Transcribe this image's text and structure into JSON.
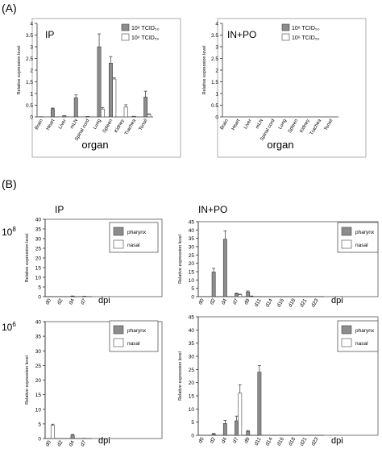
{
  "panel_labels": [
    "(A)",
    "(B)"
  ],
  "row_labels": [
    {
      "base": "10",
      "sup": "8"
    },
    {
      "base": "10",
      "sup": "6"
    }
  ],
  "charts": {
    "a_ip": {
      "title": "IP"
    },
    "a_inpo": {
      "title": "IN+PO"
    },
    "b_ip_108": {
      "title": "IP"
    },
    "b_inpo_108": {
      "title": "IN+PO"
    }
  },
  "colors": {
    "gray": "#8c8c8c",
    "white": "#ffffff",
    "stroke": "#444444"
  },
  "chart_data": [
    {
      "id": "a_ip",
      "type": "bar",
      "title": "IP",
      "xlabel": "organ",
      "ylabel": "Relative expression level",
      "ylim": [
        0,
        4
      ],
      "yticks": [
        0,
        0.5,
        1,
        1.5,
        2,
        2.5,
        3,
        3.5,
        4
      ],
      "categories": [
        "Brain",
        "Heart",
        "Liver",
        "mLN",
        "Spinal cord",
        "Lung",
        "Spleen",
        "Kidney",
        "Trachea",
        "Tonsil"
      ],
      "legend": {
        "position": "top-right"
      },
      "series": [
        {
          "name": "10⁸ TCID₅₀",
          "color": "gray",
          "values": [
            0.01,
            0.35,
            0.06,
            0.82,
            0.02,
            3.0,
            2.3,
            0.0,
            0.03,
            0.85
          ],
          "errors": [
            0,
            0.03,
            0,
            0.12,
            0,
            0.55,
            0.28,
            0,
            0,
            0.25
          ]
        },
        {
          "name": "10⁶ TCID₅₀",
          "color": "white",
          "values": [
            0.0,
            0.0,
            0.0,
            0.0,
            0.0,
            0.33,
            1.62,
            0.42,
            0.0,
            0.1
          ],
          "errors": [
            0,
            0,
            0,
            0,
            0,
            0.06,
            0.05,
            0.1,
            0,
            0.03
          ]
        }
      ]
    },
    {
      "id": "a_inpo",
      "type": "bar",
      "title": "IN+PO",
      "xlabel": "organ",
      "ylabel": "Relative expression level",
      "ylim": [
        0,
        4
      ],
      "yticks": [
        0,
        0.5,
        1,
        1.5,
        2,
        2.5,
        3,
        3.5,
        4
      ],
      "categories": [
        "Brain",
        "Heart",
        "Liver",
        "mLN",
        "Spinal cord",
        "Lung",
        "Spleen",
        "Kidney",
        "Trachea",
        "Tonsil"
      ],
      "legend": {
        "position": "top-right"
      },
      "series": [
        {
          "name": "10⁸ TCID₅₀",
          "color": "gray",
          "values": [
            0,
            0,
            0,
            0,
            0,
            0,
            0,
            0,
            0,
            0
          ],
          "errors": [
            0,
            0,
            0,
            0,
            0,
            0,
            0,
            0,
            0,
            0
          ]
        },
        {
          "name": "10⁶ TCID₅₀",
          "color": "white",
          "values": [
            0,
            0,
            0,
            0,
            0,
            0,
            0,
            0,
            0,
            0
          ],
          "errors": [
            0,
            0,
            0,
            0,
            0,
            0,
            0,
            0,
            0,
            0
          ]
        }
      ]
    },
    {
      "id": "b_ip_108",
      "type": "bar",
      "title": "IP",
      "xlabel": "dpi",
      "ylabel": "Relative expression level",
      "ylim": [
        0,
        40
      ],
      "yticks": [
        0,
        5,
        10,
        15,
        20,
        25,
        30,
        35,
        40
      ],
      "categories": [
        "d0",
        "d2",
        "d4",
        "d7"
      ],
      "legend": {
        "position": "right"
      },
      "series": [
        {
          "name": "pharynx",
          "color": "gray",
          "values": [
            0.1,
            0.05,
            0.25,
            0.15
          ],
          "errors": [
            0,
            0,
            0.1,
            0.05
          ]
        },
        {
          "name": "nasal",
          "color": "white",
          "values": [
            0,
            0,
            0,
            0
          ],
          "errors": [
            0,
            0,
            0,
            0
          ]
        }
      ]
    },
    {
      "id": "b_inpo_108",
      "type": "bar",
      "title": "IN+PO",
      "xlabel": "dpi",
      "ylabel": "Relative expression level",
      "ylim": [
        0,
        45
      ],
      "yticks": [
        0,
        5,
        10,
        15,
        20,
        25,
        30,
        35,
        40,
        45
      ],
      "categories": [
        "d0",
        "d2",
        "d4",
        "d7",
        "d9",
        "d11",
        "d14",
        "d16",
        "d18",
        "d21",
        "d23"
      ],
      "legend": {
        "position": "right"
      },
      "series": [
        {
          "name": "pharynx",
          "color": "gray",
          "values": [
            0,
            14.8,
            34.5,
            1.8,
            2.8,
            0.1,
            0,
            0,
            0,
            0,
            0
          ],
          "errors": [
            0,
            2.2,
            5.0,
            0.3,
            0.6,
            0,
            0,
            0,
            0,
            0,
            0
          ]
        },
        {
          "name": "nasal",
          "color": "white",
          "values": [
            0,
            0,
            0,
            1.2,
            0.3,
            0,
            0,
            0,
            0,
            0,
            0
          ],
          "errors": [
            0,
            0,
            0,
            0.3,
            0.1,
            0,
            0,
            0,
            0,
            0,
            0
          ]
        }
      ]
    },
    {
      "id": "b_ip_106",
      "type": "bar",
      "xlabel": "dpi",
      "ylabel": "Relative expression level",
      "ylim": [
        0,
        40
      ],
      "yticks": [
        0,
        5,
        10,
        15,
        20,
        25,
        30,
        35,
        40
      ],
      "categories": [
        "d0",
        "d2",
        "d4",
        "d7"
      ],
      "legend": {
        "position": "right"
      },
      "series": [
        {
          "name": "pharynx",
          "color": "gray",
          "values": [
            0,
            0,
            1.2,
            0.1
          ],
          "errors": [
            0,
            0,
            0.2,
            0
          ]
        },
        {
          "name": "nasal",
          "color": "white",
          "values": [
            4.5,
            0,
            0,
            0
          ],
          "errors": [
            0.4,
            0,
            0,
            0
          ]
        }
      ]
    },
    {
      "id": "b_inpo_106",
      "type": "bar",
      "xlabel": "dpi",
      "ylabel": "Relative expression level",
      "ylim": [
        0,
        45
      ],
      "yticks": [
        0,
        5,
        10,
        15,
        20,
        25,
        30,
        35,
        40,
        45
      ],
      "categories": [
        "d0",
        "d2",
        "d4",
        "d7",
        "d9",
        "d11",
        "d14",
        "d16",
        "d18",
        "d21",
        "d23"
      ],
      "legend": {
        "position": "right"
      },
      "series": [
        {
          "name": "pharynx",
          "color": "gray",
          "values": [
            0,
            0.5,
            4.5,
            5.5,
            1.5,
            24.0,
            0,
            0,
            0,
            0,
            0
          ],
          "errors": [
            0,
            0.2,
            1.2,
            1.8,
            0.3,
            2.5,
            0,
            0,
            0,
            0,
            0
          ]
        },
        {
          "name": "nasal",
          "color": "white",
          "values": [
            0,
            0,
            0,
            16.0,
            0,
            0,
            0,
            0,
            0,
            0,
            0
          ],
          "errors": [
            0,
            0,
            0,
            3.2,
            0,
            0,
            0,
            0,
            0,
            0,
            0
          ]
        }
      ]
    }
  ]
}
